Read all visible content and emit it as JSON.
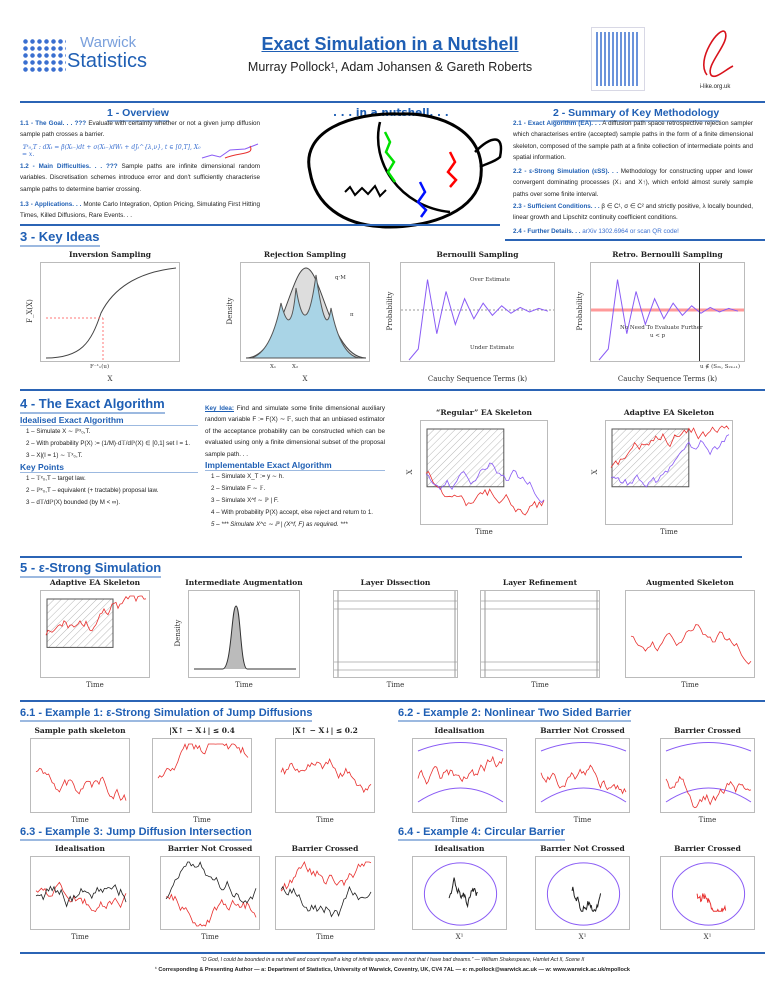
{
  "header": {
    "logo_top": "Warwick",
    "logo_bottom": "Statistics",
    "title": "Exact Simulation in a Nutshell",
    "authors": "Murray Pollock¹, Adam Johansen & Gareth Roberts",
    "ilike": "i-like.org.uk"
  },
  "sections": {
    "s1": "1 - Overview",
    "nutshell": ". . . in a nutshell. . .",
    "s2": "2 - Summary of Key Methodology",
    "s3": "3 - Key Ideas",
    "s4": "4 - The Exact Algorithm",
    "s5": "5 - ε-Strong Simulation",
    "s61": "6.1 - Example 1: ε-Strong Simulation of Jump Diffusions",
    "s62": "6.2 - Example 2: Nonlinear Two Sided Barrier",
    "s63": "6.3 - Example 3: Jump Diffusion Intersection",
    "s64": "6.4 - Example 4: Circular Barrier"
  },
  "overview": [
    {
      "head": "1.1 - The Goal. . . ???",
      "body": "Evaluate with certainty whether or not a given jump diffusion sample path crosses a barrier."
    },
    {
      "head": "1.2 - Main Difficulties. . . ???",
      "body": "Sample paths are infinite dimensional random variables. Discretisation schemes introduce error and don't sufficiently characterise sample paths to determine barrier crossing."
    },
    {
      "head": "1.3 - Applications. . .",
      "body": "Monte Carlo Integration, Option Pricing, Simulating First Hitting Times, Killed Diffusions, Rare Events. . ."
    }
  ],
  "equation": "𝕋ˣ₀,T : dXₜ = β(Xₜ₋)dt + σ(Xₜ₋)dWₜ + dJₜ^{λ,ν}, t ∈ [0,T], X₀ = x.",
  "summary": [
    {
      "head": "2.1 - Exact Algorithm (EA). . .",
      "body": "A diffusion path space retrospective rejection sampler which characterises entire (accepted) sample paths in the form of a finite dimensional skeleton, composed of the sample path at a finite collection of intermediate points and spatial information."
    },
    {
      "head": "2.2 - ε-Strong Simulation (εSS). . .",
      "body": "Methodology for constructing upper and lower convergent dominating processes (X↓ and X↑), which enfold almost surely sample paths over some finite interval."
    },
    {
      "head": "2.3 - Sufficient Conditions. . .",
      "body": "β ∈ C¹, σ ∈ C² and strictly positive, λ locally bounded, linear growth and Lipschitz continuity coefficient conditions."
    },
    {
      "head": "2.4 - Further Details. . .",
      "body": "arXiv 1302.6964 or scan QR code!"
    }
  ],
  "key_ideas": {
    "titles": [
      "Inversion Sampling",
      "Rejection Sampling",
      "Bernoulli Sampling",
      "Retro. Bernoulli Sampling"
    ],
    "xlabels": [
      "X",
      "X",
      "Cauchy Sequence Terms (k)",
      "Cauchy Sequence Terms (k)"
    ],
    "ylabels": [
      "F_X(X)",
      "Density",
      "Probability",
      "Probability"
    ],
    "annotations": [
      "F⁻¹ₓ(u)",
      "X₁",
      "X₂",
      "q·M",
      "π",
      "Over Estimate",
      "Under Estimate",
      "No Need To Evaluate Further",
      "u < p",
      "u ∉ (S₂ₖ, S₂ₖ₊₁)"
    ]
  },
  "ea": {
    "idealised_head": "Idealised Exact Algorithm",
    "idealised": [
      "1 – Simulate X ∼ ℙˣ₀,T.",
      "2 – With probability P(X) := (1/M)·d𝕋/dℙ(X) ∈ [0,1] set I = 1.",
      "3 – X|(I = 1) ∼ 𝕋ˣ₀,T."
    ],
    "keypoints_head": "Key Points",
    "keypoints": [
      "1 – 𝕋ˣ₀,T – target law.",
      "2 – ℙˣ₀,T – equivalent (+ tractable) proposal law.",
      "3 – d𝕋/dℙ(X) bounded (by M < ∞)."
    ],
    "keyidea_head": "Key Idea:",
    "keyidea": "Find and simulate some finite dimensional auxiliary random variable F := F(X) ∼ 𝔽, such that an unbiased estimator of the acceptance probability can be constructed which can be evaluated using only a finite dimensional subset of the proposal sample path. . .",
    "impl_head": "Implementable Exact Algorithm",
    "impl": [
      "1 – Simulate X_T := y ∼ h.",
      "2 – Simulate F ∼ 𝔽.",
      "3 – Simulate X^f ∼ ℙ | F.",
      "4 – With probability P(X) accept, else reject and return to 1.",
      "5 – *** Simulate X^c ∼ ℙ | (X^f, F) as required. ***"
    ],
    "plot_titles": [
      "“Regular” EA Skeleton",
      "Adaptive EA Skeleton"
    ],
    "xlabel": "Time",
    "ylabel": "X"
  },
  "ess": {
    "titles": [
      "Adaptive EA Skeleton",
      "Intermediate Augmentation",
      "Layer Dissection",
      "Layer Refinement",
      "Augmented Skeleton"
    ],
    "xlabel": "Time",
    "ylabel_density": "Density"
  },
  "examples": {
    "e1": [
      "Sample path skeleton",
      "|X↑ − X↓| ≤ 0.4",
      "|X↑ − X↓| ≤ 0.2"
    ],
    "e2": [
      "Idealisation",
      "Barrier Not Crossed",
      "Barrier Crossed"
    ],
    "e3": [
      "Idealisation",
      "Barrier Not Crossed",
      "Barrier Crossed"
    ],
    "e4": [
      "Idealisation",
      "Barrier Not Crossed",
      "Barrier Crossed"
    ],
    "xlabel": "Time",
    "xlabel_circ": "X¹"
  },
  "footer": {
    "quote": "“O God, I could be bounded in a nut shell and count myself a king of infinite space, were it not that I have bad dreams.” — William Shakespeare, Hamlet Act II, Scene II",
    "contact": "¹ Corresponding & Presenting Author — a: Department of Statistics, University of Warwick, Coventry, UK, CV4 7AL — e: m.pollock@warwick.ac.uk — w: www.warwick.ac.uk/mpollock"
  },
  "colors": {
    "accent": "#1f5fb4",
    "path_red": "#e8312f",
    "path_purple": "#8a5cf5",
    "fill_blue": "#a9d4e6"
  }
}
